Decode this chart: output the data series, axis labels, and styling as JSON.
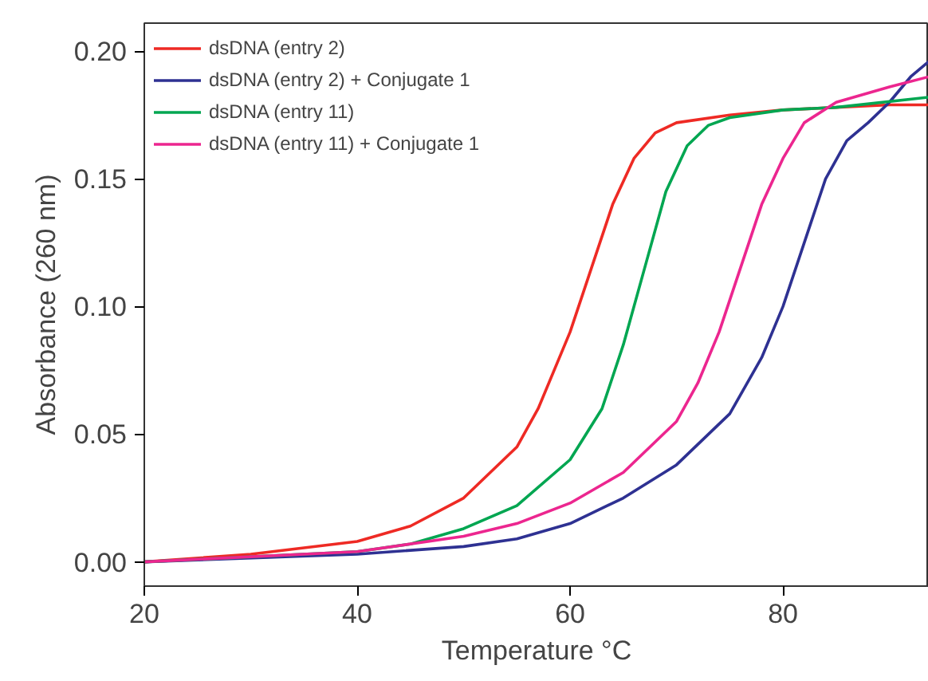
{
  "chart_data": {
    "type": "line",
    "xlabel": "Temperature °C",
    "ylabel": "Absorbance (260 nm)",
    "xlim": [
      20,
      93.7
    ],
    "ylim": [
      -0.0095,
      0.211
    ],
    "xticks": [
      20,
      40,
      60,
      80
    ],
    "yticks": [
      {
        "value": 0,
        "label": "0.00"
      },
      0.05,
      {
        "value": 0.1,
        "label": "0.10"
      },
      0.15,
      {
        "value": 0.2,
        "label": "0.20"
      }
    ],
    "legend": "top left",
    "grid": false,
    "series": [
      {
        "name": "dsDNA (entry 2)",
        "color": "#ee2a24",
        "x": [
          20,
          30,
          40,
          45,
          50,
          55,
          57,
          60,
          62,
          64,
          66,
          68,
          70,
          75,
          80,
          85,
          90,
          93.7
        ],
        "values": [
          0,
          0.003,
          0.008,
          0.014,
          0.025,
          0.045,
          0.06,
          0.09,
          0.115,
          0.14,
          0.158,
          0.168,
          0.172,
          0.175,
          0.177,
          0.178,
          0.179,
          0.179
        ]
      },
      {
        "name": "dsDNA (entry 2) + Conjugate 1",
        "color": "#2e3192",
        "x": [
          20,
          40,
          50,
          55,
          60,
          65,
          70,
          75,
          78,
          80,
          82,
          84,
          86,
          88,
          90,
          92,
          93.7
        ],
        "values": [
          0,
          0.003,
          0.006,
          0.009,
          0.015,
          0.025,
          0.038,
          0.058,
          0.08,
          0.1,
          0.125,
          0.15,
          0.165,
          0.172,
          0.18,
          0.19,
          0.196
        ]
      },
      {
        "name": "dsDNA (entry 11)",
        "color": "#00a651",
        "x": [
          20,
          40,
          45,
          50,
          55,
          60,
          63,
          65,
          67,
          69,
          71,
          73,
          75,
          80,
          85,
          93.7
        ],
        "values": [
          0,
          0.004,
          0.007,
          0.013,
          0.022,
          0.04,
          0.06,
          0.085,
          0.115,
          0.145,
          0.163,
          0.171,
          0.174,
          0.177,
          0.178,
          0.182
        ]
      },
      {
        "name": "dsDNA (entry 11) + Conjugate 1",
        "color": "#ec268f",
        "x": [
          20,
          40,
          50,
          55,
          60,
          65,
          70,
          72,
          74,
          76,
          78,
          80,
          82,
          85,
          90,
          93.7
        ],
        "values": [
          0,
          0.004,
          0.01,
          0.015,
          0.023,
          0.035,
          0.055,
          0.07,
          0.09,
          0.115,
          0.14,
          0.158,
          0.172,
          0.18,
          0.186,
          0.19
        ]
      }
    ]
  }
}
